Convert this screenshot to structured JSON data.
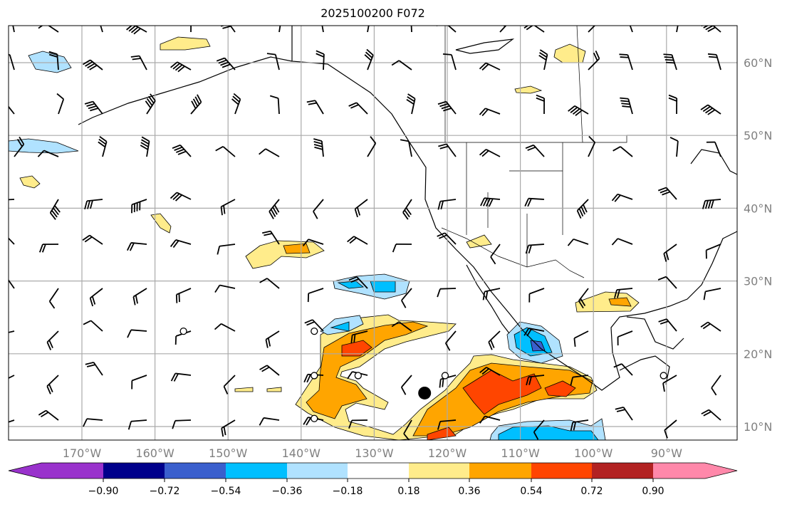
{
  "title": "2025100200 F072",
  "lon_labels": [
    {
      "lon": -170,
      "text": "170°W"
    },
    {
      "lon": -160,
      "text": "160°W"
    },
    {
      "lon": -150,
      "text": "150°W"
    },
    {
      "lon": -140,
      "text": "140°W"
    },
    {
      "lon": -130,
      "text": "130°W"
    },
    {
      "lon": -120,
      "text": "120°W"
    },
    {
      "lon": -110,
      "text": "110°W"
    },
    {
      "lon": -100,
      "text": "100°W"
    },
    {
      "lon": -90,
      "text": "90°W"
    }
  ],
  "lat_labels": [
    {
      "lat": 60,
      "text": "60°N"
    },
    {
      "lat": 50,
      "text": "50°N"
    },
    {
      "lat": 40,
      "text": "40°N"
    },
    {
      "lat": 30,
      "text": "30°N"
    },
    {
      "lat": 20,
      "text": "20°N"
    },
    {
      "lat": 10,
      "text": "10°N"
    }
  ],
  "colorbar": {
    "colors": [
      "#9932CC",
      "#00008B",
      "#3A5FCD",
      "#00BFFF",
      "#B0E2FF",
      "#FFFFFF",
      "#FFEC8B",
      "#FFA500",
      "#FF4500",
      "#B22222",
      "#FF88AA"
    ],
    "ticks": [
      "−0.90",
      "−0.72",
      "−0.54",
      "−0.36",
      "−0.18",
      "0.18",
      "0.36",
      "0.54",
      "0.72",
      "0.90"
    ]
  },
  "markers": {
    "open_circles": [
      [
        -156.1,
        23.1
      ],
      [
        -138.2,
        23.1
      ],
      [
        -138.2,
        17.0
      ],
      [
        -132.2,
        17.0
      ],
      [
        -120.3,
        17.0
      ],
      [
        -138.2,
        11.1
      ],
      [
        -90.4,
        17.0
      ]
    ],
    "filled_circle": [
      -123.1,
      14.6
    ]
  }
}
